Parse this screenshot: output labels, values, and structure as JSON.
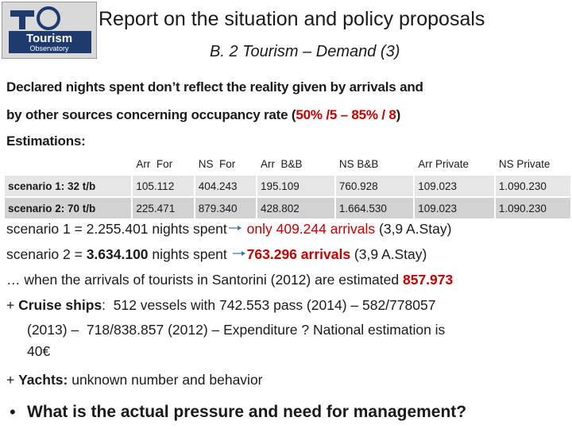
{
  "header": {
    "title": "Report on the situation and policy proposals",
    "subtitle": "B. 2 Tourism – Demand (3)",
    "logo": [
      "Tourism",
      "Observatory"
    ]
  },
  "intro": {
    "lines": [
      [
        {
          "text": "Declared nights spent don’t reflect the reality given by arrivals and"
        }
      ],
      [
        {
          "text": "by other sources concerning occupancy rate ("
        },
        {
          "text": "50% /5 – 85% / 8",
          "color": "#c00000"
        },
        {
          "text": ")"
        }
      ],
      [
        {
          "text": "Estimations:"
        }
      ]
    ]
  },
  "table": {
    "columns": [
      "Arr  For",
      "NS  For",
      "Arr  B&B",
      "NS B&B",
      "Arr Private",
      "NS Private"
    ],
    "rows": [
      {
        "label": "scenario 1: 32 t/b",
        "cells": [
          "105.112",
          "404.243",
          "195.109",
          "760.928",
          "109.023",
          "1.090.230"
        ]
      },
      {
        "label": "scenario 2: 70 t/b",
        "cells": [
          "225.471",
          "879.340",
          "428.802",
          "1.664.530",
          "109.023",
          "1.090.230"
        ]
      }
    ]
  },
  "body": {
    "lines": [
      [
        {
          "text": "scenario 1 = 2.255.401 nights spent"
        },
        {
          "text": " only 409.244 arrivals",
          "color": "#c00000"
        },
        {
          "text": " (3,9 A.Stay)"
        }
      ],
      [
        {
          "text": "scenario 2 = "
        },
        {
          "text": "3.634.100",
          "bold": true
        },
        {
          "text": " nights spent "
        },
        {
          "text": "763.296 arrivals",
          "color": "#c00000",
          "bold": true
        },
        {
          "text": " (3,9 A.Stay)"
        }
      ],
      [
        {
          "text": "… when the arrivals of tourists in Santorini (2012) are estimated "
        },
        {
          "text": "857.973",
          "color": "#c00000",
          "bold": true
        }
      ],
      [
        {
          "text": "+ "
        },
        {
          "text": "Cruise ships",
          "bold": true
        },
        {
          "text": ":  512 vessels with 742.553 pass (2014) – 582/778057"
        }
      ],
      [
        {
          "text": "(2013) –  718/838.857 (2012) – Expenditure ? National estimation is"
        }
      ],
      [
        {
          "text": "40€"
        }
      ],
      [
        {
          "text": "+ "
        },
        {
          "text": "Yachts:",
          "bold": true
        },
        {
          "text": " unknown number and behavior"
        }
      ]
    ]
  },
  "bullet": "What is the actual pressure and need for management?"
}
